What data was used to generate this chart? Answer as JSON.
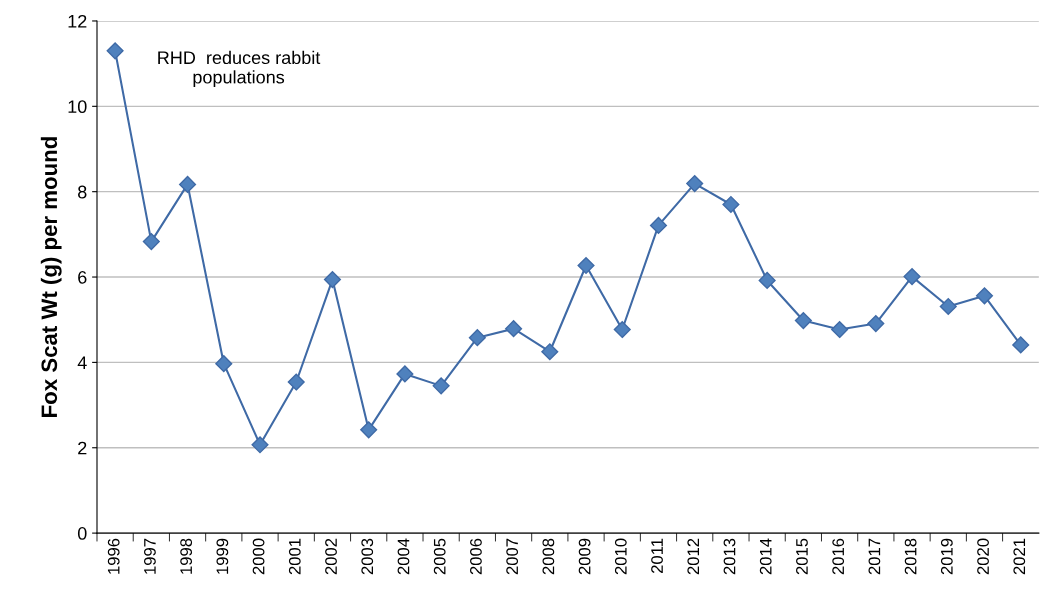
{
  "chart_data": {
    "type": "line",
    "ylabel": "Fox Scat Wt (g) per mound",
    "categories": [
      "1996",
      "1997",
      "1998",
      "1999",
      "2000",
      "2001",
      "2002",
      "2003",
      "2004",
      "2005",
      "2006",
      "2007",
      "2008",
      "2009",
      "2010",
      "2011",
      "2012",
      "2013",
      "2014",
      "2015",
      "2016",
      "2017",
      "2018",
      "2019",
      "2020",
      "2021"
    ],
    "series": [
      {
        "color": "#3f6aa6",
        "values": [
          11.3,
          6.83,
          8.17,
          3.97,
          2.07,
          3.54,
          5.94,
          2.42,
          3.73,
          3.45,
          4.58,
          4.79,
          4.25,
          6.27,
          4.77,
          7.21,
          8.19,
          7.7,
          5.92,
          4.98,
          4.77,
          4.91,
          6.01,
          5.31,
          5.56,
          4.41
        ]
      }
    ],
    "ylim": [
      0,
      12
    ],
    "yticks": [
      0,
      2,
      4,
      6,
      8,
      10,
      12
    ],
    "grid": "y",
    "marker": "diamond",
    "line_style": "solid",
    "annotations": [
      {
        "text": "RHD  reduces rabbit\npopulations",
        "x": "1996",
        "y": 11.3
      }
    ]
  }
}
